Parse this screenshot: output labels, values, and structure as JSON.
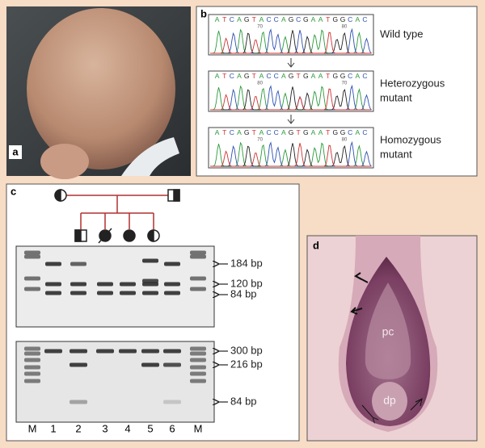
{
  "panels": {
    "a": {
      "label": "a"
    },
    "b": {
      "label": "b",
      "traces": [
        {
          "sequence": "ATCAGTACCAGCGAATGGCAC",
          "positions": [
            70,
            80
          ],
          "caption": [
            "Wild type"
          ]
        },
        {
          "sequence": "ATCAGTACCAGTGAATGGCAC",
          "positions": [
            80,
            70
          ],
          "caption": [
            "Heterozygous",
            "mutant"
          ]
        },
        {
          "sequence": "ATCAGTACCAGTGAATGGCAC",
          "positions": [
            70,
            80
          ],
          "caption": [
            "Homozygous",
            "mutant"
          ]
        }
      ]
    },
    "c": {
      "label": "c",
      "gel_top": {
        "bands": [
          "184 bp",
          "120 bp",
          "84 bp"
        ]
      },
      "gel_bottom": {
        "bands": [
          "300 bp",
          "216 bp",
          "84 bp"
        ]
      },
      "lanes": [
        "M",
        "1",
        "2",
        "3",
        "4",
        "5",
        "6",
        "M"
      ]
    },
    "d": {
      "label": "d",
      "regions": [
        "pc",
        "dp"
      ]
    }
  }
}
